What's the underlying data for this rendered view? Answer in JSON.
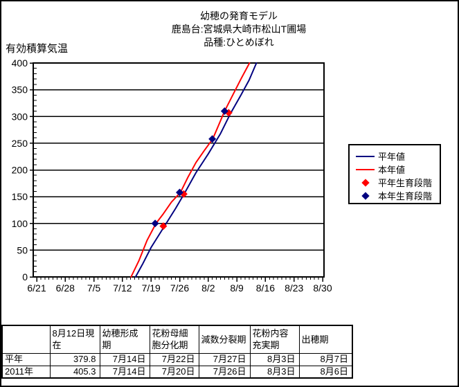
{
  "chart_data": {
    "type": "line",
    "title_lines": [
      "幼穂の発育モデル",
      "鹿島台:宮城県大崎市松山T圃場",
      "品種:ひとめぼれ"
    ],
    "title": "幼穂の発育モデル 鹿島台:宮城県大崎市松山T圃場 品種:ひとめぼれ",
    "ylabel": "有効積算気温",
    "xlabel": "",
    "ylim": [
      0,
      400
    ],
    "y_major_step": 50,
    "y_minor_step": 10,
    "x_start_date": "6/21",
    "x_total_days": 70,
    "x_days_per_major_tick": 7,
    "x_tick_labels": [
      "6/21",
      "6/28",
      "7/5",
      "7/12",
      "7/19",
      "7/26",
      "8/2",
      "8/9",
      "8/16",
      "8/23",
      "8/30"
    ],
    "grid": "horizontal-major",
    "legend_position": "right",
    "series": [
      {
        "name": "平年値",
        "kind": "line",
        "color": "#000080",
        "points_day_value": [
          [
            24.2,
            0
          ],
          [
            26,
            25
          ],
          [
            28,
            55
          ],
          [
            31.7,
            100
          ],
          [
            34,
            128
          ],
          [
            36.3,
            158
          ],
          [
            39,
            195
          ],
          [
            42,
            230
          ],
          [
            45,
            268
          ],
          [
            47.4,
            305
          ],
          [
            50,
            340
          ],
          [
            52,
            368
          ],
          [
            53.8,
            400
          ]
        ]
      },
      {
        "name": "本年値",
        "kind": "line",
        "color": "#FF0000",
        "points_day_value": [
          [
            23.1,
            0
          ],
          [
            25,
            30
          ],
          [
            27,
            68
          ],
          [
            29.2,
            100
          ],
          [
            31,
            118
          ],
          [
            33,
            140
          ],
          [
            35.2,
            158
          ],
          [
            37,
            186
          ],
          [
            39,
            214
          ],
          [
            41,
            236
          ],
          [
            43.1,
            258
          ],
          [
            44.5,
            283
          ],
          [
            46,
            310
          ],
          [
            48,
            340
          ],
          [
            50,
            370
          ],
          [
            52.1,
            400
          ]
        ]
      },
      {
        "name": "平年生育段階",
        "kind": "marker",
        "color": "#FF0000",
        "stages": [
          {
            "date": "7/22",
            "day": 31,
            "value": 95
          },
          {
            "date": "7/27",
            "day": 36,
            "value": 155
          },
          {
            "date": "8/7",
            "day": 47,
            "value": 307
          }
        ]
      },
      {
        "name": "本年生育段階",
        "kind": "marker",
        "color": "#000080",
        "stages": [
          {
            "date": "7/20",
            "day": 29,
            "value": 100
          },
          {
            "date": "7/26",
            "day": 35,
            "value": 158
          },
          {
            "date": "8/3",
            "day": 43,
            "value": 258
          },
          {
            "date": "8/6",
            "day": 46,
            "value": 310
          }
        ]
      }
    ]
  },
  "table": {
    "headers": [
      "",
      "8月12日現在",
      "幼穂形成期",
      "花粉母細胞分化期",
      "減数分裂期",
      "花粉内容充実期",
      "出穂期"
    ],
    "rows": [
      {
        "label": "平年",
        "values": [
          "379.8",
          "7月14日",
          "7月22日",
          "7月27日",
          "8月3日",
          "8月7日"
        ]
      },
      {
        "label": "2011年",
        "values": [
          "405.3",
          "7月14日",
          "7月20日",
          "7月26日",
          "8月3日",
          "8月6日"
        ]
      }
    ]
  }
}
